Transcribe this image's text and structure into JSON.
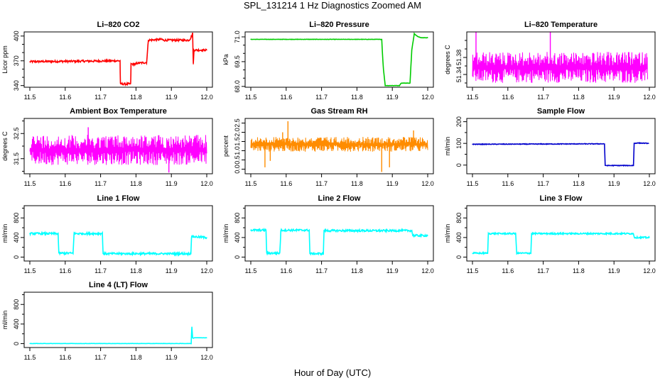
{
  "figure": {
    "title": "SPL_131214  1 Hz Diagnostics Zoomed AM",
    "xlabel": "Hour of Day (UTC)"
  },
  "chart_data": [
    {
      "type": "line",
      "title": "Li–820 CO2",
      "ylabel": "Licor ppm",
      "color": "#ff0000",
      "xlim": [
        11.5,
        12.0
      ],
      "ylim": [
        338,
        405
      ],
      "xticks": [
        "11.5",
        "11.6",
        "11.7",
        "11.8",
        "11.9",
        "12.0"
      ],
      "yticks": [
        340,
        370,
        400
      ],
      "minor_yticks": [
        350,
        360,
        380,
        390
      ],
      "x": [
        11.5,
        11.755,
        11.756,
        11.785,
        11.786,
        11.8,
        11.8,
        11.83,
        11.835,
        11.875,
        11.876,
        11.95,
        11.955,
        11.96,
        11.962,
        11.964,
        12.0
      ],
      "y": [
        369,
        370,
        342,
        342,
        366,
        366,
        367,
        368,
        395,
        396,
        395,
        395,
        398,
        403,
        366,
        383,
        383
      ],
      "noise": 1.2
    },
    {
      "type": "line",
      "title": "Li–820 Pressure",
      "ylabel": "kPa",
      "color": "#00cc00",
      "xlim": [
        11.5,
        12.0
      ],
      "ylim": [
        67.95,
        71.3
      ],
      "xticks": [
        "11.5",
        "11.6",
        "11.7",
        "11.8",
        "11.9",
        "12.0"
      ],
      "yticks": [
        "68.0",
        "69.5",
        "71.0"
      ],
      "minor_yticks": [
        68.5,
        69.0,
        70.0,
        70.5
      ],
      "x": [
        11.5,
        11.87,
        11.872,
        11.875,
        11.88,
        11.92,
        11.925,
        11.95,
        11.955,
        11.96,
        11.962,
        11.97,
        11.98,
        12.0
      ],
      "y": [
        70.85,
        70.85,
        70.0,
        69.0,
        68.05,
        68.05,
        68.2,
        68.2,
        70.2,
        70.9,
        71.2,
        71.05,
        70.95,
        70.95
      ],
      "noise": 0.01
    },
    {
      "type": "noise_band",
      "title": "Li–820 Temperature",
      "ylabel": "degrees C",
      "color": "#ff00ff",
      "xlim": [
        11.5,
        12.0
      ],
      "ylim": [
        51.31,
        51.44
      ],
      "xticks": [
        "11.5",
        "11.6",
        "11.7",
        "11.8",
        "11.9",
        "12.0"
      ],
      "yticks": [
        "51.34",
        "51.38"
      ],
      "minor_yticks": [
        51.32,
        51.36,
        51.4,
        51.42
      ],
      "low": 51.32,
      "high": 51.393,
      "extra_spikes": [
        [
          11.51,
          51.44
        ],
        [
          11.72,
          51.44
        ]
      ],
      "x_end": 11.995
    },
    {
      "type": "noise_band",
      "title": "Ambient Box Temperature",
      "ylabel": "degrees C",
      "color": "#ff00ff",
      "xlim": [
        11.5,
        12.0
      ],
      "ylim": [
        30.9,
        33.1
      ],
      "xticks": [
        "11.5",
        "11.6",
        "11.7",
        "11.8",
        "11.9",
        "12.0"
      ],
      "yticks": [
        "31.5",
        "32.5"
      ],
      "minor_yticks": [
        31.0,
        32.0,
        33.0
      ],
      "low": 31.25,
      "high": 32.45,
      "extra_spikes": [
        [
          11.665,
          32.75
        ],
        [
          11.893,
          30.95
        ]
      ],
      "x_end": 12.0
    },
    {
      "type": "noise_band",
      "title": "Gas Stream RH",
      "ylabel": "percent",
      "color": "#ff8c00",
      "xlim": [
        11.5,
        12.0
      ],
      "ylim": [
        -0.25,
        2.75
      ],
      "xticks": [
        "11.5",
        "11.6",
        "11.7",
        "11.8",
        "11.9",
        "12.0"
      ],
      "yticks": [
        "0.0",
        "0.5",
        "1.0",
        "1.5",
        "2.0",
        "2.5"
      ],
      "minor_yticks": [],
      "low": 0.95,
      "high": 1.75,
      "extra_spikes": [
        [
          11.605,
          2.6
        ],
        [
          11.54,
          0.1
        ],
        [
          11.555,
          0.45
        ],
        [
          11.87,
          -0.15
        ],
        [
          11.892,
          0.1
        ],
        [
          11.96,
          2.1
        ],
        [
          11.59,
          2.0
        ]
      ],
      "x_end": 12.0
    },
    {
      "type": "line",
      "title": "Sample Flow",
      "ylabel": "ml/min",
      "color": "#0000cc",
      "xlim": [
        11.5,
        12.0
      ],
      "ylim": [
        -40,
        215
      ],
      "xticks": [
        "11.5",
        "11.6",
        "11.7",
        "11.8",
        "11.9",
        "12.0"
      ],
      "yticks": [
        0,
        100,
        200
      ],
      "minor_yticks": [
        50,
        150
      ],
      "x": [
        11.5,
        11.873,
        11.875,
        11.955,
        11.957,
        11.965,
        11.998
      ],
      "y": [
        96,
        98,
        -2,
        -2,
        100,
        102,
        100
      ],
      "noise": 1.5
    },
    {
      "type": "line",
      "title": "Line 1 Flow",
      "ylabel": "ml/min",
      "color": "#00ffff",
      "xlim": [
        11.5,
        12.0
      ],
      "ylim": [
        -80,
        1050
      ],
      "xticks": [
        "11.5",
        "11.6",
        "11.7",
        "11.8",
        "11.9",
        "12.0"
      ],
      "yticks": [
        0,
        400,
        800
      ],
      "minor_yticks": [
        200,
        600,
        1000
      ],
      "x": [
        11.5,
        11.58,
        11.582,
        11.622,
        11.625,
        11.705,
        11.707,
        11.955,
        11.957,
        12.0
      ],
      "y": [
        480,
        480,
        80,
        80,
        480,
        480,
        70,
        70,
        420,
        400
      ],
      "noise": 20
    },
    {
      "type": "line",
      "title": "Line 2 Flow",
      "ylabel": "ml/min",
      "color": "#00ffff",
      "xlim": [
        11.5,
        12.0
      ],
      "ylim": [
        -80,
        1050
      ],
      "xticks": [
        "11.5",
        "11.6",
        "11.7",
        "11.8",
        "11.9",
        "12.0"
      ],
      "yticks": [
        0,
        400,
        800
      ],
      "minor_yticks": [
        200,
        600,
        1000
      ],
      "x": [
        11.5,
        11.543,
        11.545,
        11.582,
        11.585,
        11.665,
        11.667,
        11.705,
        11.707,
        11.955,
        11.958,
        12.0
      ],
      "y": [
        550,
        550,
        80,
        80,
        550,
        550,
        70,
        70,
        540,
        540,
        440,
        440
      ],
      "noise": 20
    },
    {
      "type": "line",
      "title": "Line 3 Flow",
      "ylabel": "ml/min",
      "color": "#00ffff",
      "xlim": [
        11.5,
        12.0
      ],
      "ylim": [
        -80,
        1050
      ],
      "xticks": [
        "11.5",
        "11.6",
        "11.7",
        "11.8",
        "11.9",
        "12.0"
      ],
      "yticks": [
        0,
        400,
        800
      ],
      "minor_yticks": [
        200,
        600,
        1000
      ],
      "x": [
        11.5,
        11.543,
        11.545,
        11.622,
        11.625,
        11.665,
        11.667,
        11.955,
        11.958,
        12.0
      ],
      "y": [
        80,
        80,
        480,
        480,
        80,
        80,
        480,
        480,
        400,
        400
      ],
      "noise": 15
    },
    {
      "type": "line",
      "title": "Line 4 (LT) Flow",
      "ylabel": "ml/min",
      "color": "#00ffff",
      "xlim": [
        11.5,
        12.0
      ],
      "ylim": [
        -80,
        1050
      ],
      "xticks": [
        "11.5",
        "11.6",
        "11.7",
        "11.8",
        "11.9",
        "12.0"
      ],
      "yticks": [
        0,
        400,
        800
      ],
      "minor_yticks": [
        200,
        600,
        1000
      ],
      "x": [
        11.5,
        11.956,
        11.957,
        11.958,
        11.96,
        11.962,
        11.965,
        12.0
      ],
      "y": [
        2,
        2,
        200,
        340,
        120,
        110,
        120,
        120
      ],
      "noise": 2
    }
  ]
}
